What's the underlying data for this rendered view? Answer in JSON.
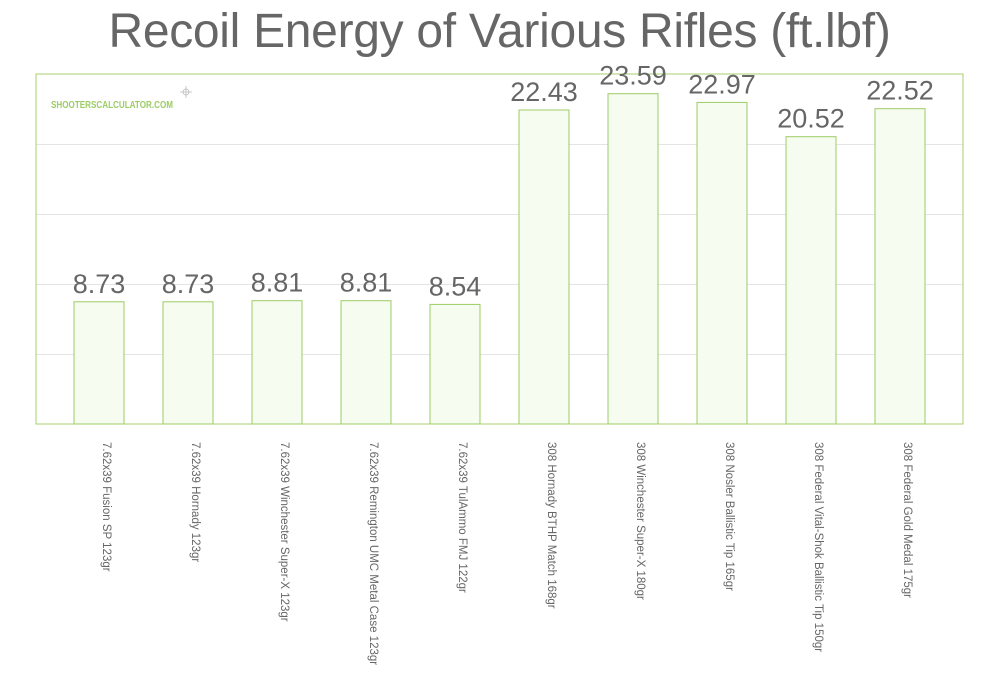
{
  "watermark": "SHOOTERSCALCULATOR.COM",
  "colors": {
    "frame": "#a9cf6e",
    "bar_fill": "#f6fcef",
    "bar_stroke": "#9ccc65",
    "grid": "#e4e4e4",
    "text": "#666666",
    "watermark": "#9ccc65"
  },
  "chart_data": {
    "type": "bar",
    "title": "Recoil Energy of Various Rifles (ft.lbf)",
    "xlabel": "",
    "ylabel": "",
    "ylim": [
      0,
      25
    ],
    "grid": true,
    "legend": "none",
    "data_labels": true,
    "categories": [
      "7.62x39 Fusion SP 123gr",
      "7.62x39 Hornady 123gr",
      "7.62x39 Winchester Super-X 123gr",
      "7.62x39 Remington UMC Metal Case 123gr",
      "7.62x39 TulAmmo FMJ 122gr",
      "308 Hornady BTHP Match 168gr",
      "308 Winchester Super-X 180gr",
      "308 Nosler Ballistic Tip 165gr",
      "308 Federal Vital-Shok Ballistic Tip 150gr",
      "308 Federal Gold Medal 175gr"
    ],
    "values": [
      8.73,
      8.73,
      8.81,
      8.81,
      8.54,
      22.43,
      23.59,
      22.97,
      20.52,
      22.52
    ],
    "value_labels": [
      "8.73",
      "8.73",
      "8.81",
      "8.81",
      "8.54",
      "22.43",
      "23.59",
      "22.97",
      "20.52",
      "22.52"
    ]
  }
}
